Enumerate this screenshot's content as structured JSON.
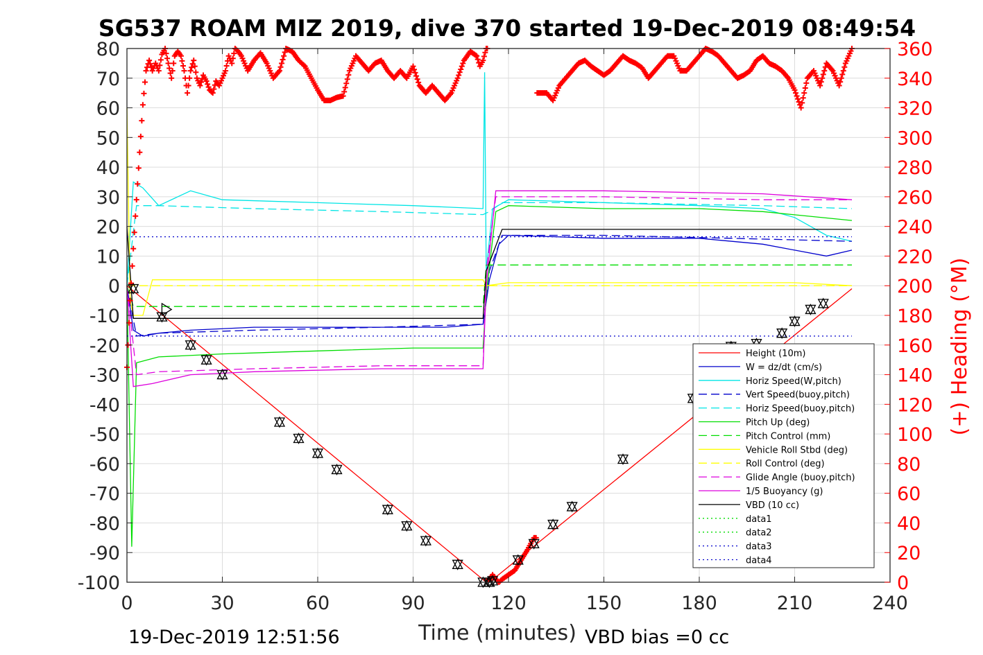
{
  "title": "SG537 ROAM MIZ 2019, dive 370 started 19-Dec-2019 08:49:54",
  "footer": {
    "left": "19-Dec-2019 12:51:56",
    "right": "VBD bias =0 cc"
  },
  "colors": {
    "red": "#ff0000",
    "blue": "#0000cc",
    "cyan": "#00e5e5",
    "green": "#00dd00",
    "yellow": "#ffff00",
    "magenta": "#dd00dd",
    "black": "#000000",
    "grid": "#dcdcdc"
  },
  "chart_data": {
    "type": "line",
    "title": "SG537 ROAM MIZ 2019, dive 370 started 19-Dec-2019 08:49:54",
    "xlabel": "Time (minutes)",
    "ylabel": "",
    "y2label": "(+) Heading (°M)",
    "xlim": [
      0,
      240
    ],
    "ylim": [
      -100,
      80
    ],
    "y2lim": [
      0,
      360
    ],
    "xticks": [
      "0",
      "30",
      "60",
      "90",
      "120",
      "150",
      "180",
      "210",
      "240"
    ],
    "xtick_values": [
      0,
      30,
      60,
      90,
      120,
      150,
      180,
      210,
      240
    ],
    "yticks": [
      "80",
      "70",
      "60",
      "50",
      "40",
      "30",
      "20",
      "10",
      "0",
      "-10",
      "-20",
      "-30",
      "-40",
      "-50",
      "-60",
      "-70",
      "-80",
      "-90",
      "-100"
    ],
    "ytick_values": [
      80,
      70,
      60,
      50,
      40,
      30,
      20,
      10,
      0,
      -10,
      -20,
      -30,
      -40,
      -50,
      -60,
      -70,
      -80,
      -90,
      -100
    ],
    "y2ticks": [
      "360",
      "340",
      "320",
      "300",
      "280",
      "260",
      "240",
      "220",
      "200",
      "180",
      "160",
      "140",
      "120",
      "100",
      "80",
      "60",
      "40",
      "20",
      "0"
    ],
    "y2tick_values": [
      360,
      340,
      320,
      300,
      280,
      260,
      240,
      220,
      200,
      180,
      160,
      140,
      120,
      100,
      80,
      60,
      40,
      20,
      0
    ],
    "grid": true,
    "legend_position": "bottom-right",
    "series": [
      {
        "name": "Height (10m)",
        "color": "#ff0000",
        "style": "solid",
        "x": [
          0,
          113,
          114,
          228
        ],
        "y": [
          0,
          -100,
          -100,
          -1
        ]
      },
      {
        "name": "W = dz/dt (cm/s)",
        "color": "#0000cc",
        "style": "solid",
        "x": [
          0,
          2,
          5,
          10,
          20,
          40,
          60,
          80,
          100,
          112,
          114,
          117,
          120,
          150,
          180,
          200,
          210,
          220,
          228
        ],
        "y": [
          0,
          -15,
          -17,
          -16,
          -15,
          -14,
          -14,
          -14,
          -14,
          -13,
          2,
          14,
          17,
          16,
          16,
          14,
          12,
          10,
          12
        ]
      },
      {
        "name": "Horiz Speed(W,pitch)",
        "color": "#00e5e5",
        "style": "solid",
        "x": [
          0,
          2,
          5,
          10,
          20,
          30,
          60,
          90,
          112,
          112.5,
          113,
          115,
          120,
          150,
          180,
          200,
          210,
          220,
          228
        ],
        "y": [
          0,
          35,
          33,
          27,
          32,
          29,
          28,
          27,
          26,
          72,
          5,
          26,
          29,
          28,
          27,
          26,
          23,
          17,
          15
        ]
      },
      {
        "name": "Vert Speed(buoy,pitch)",
        "color": "#0000cc",
        "style": "dashed",
        "x": [
          0,
          3,
          10,
          40,
          80,
          112,
          114,
          118,
          150,
          190,
          228
        ],
        "y": [
          0,
          -17,
          -16,
          -15,
          -14,
          -13,
          5,
          17,
          17,
          16,
          15
        ]
      },
      {
        "name": "Horiz Speed(buoy,pitch)",
        "color": "#00e5e5",
        "style": "dashed",
        "x": [
          0,
          3,
          10,
          40,
          80,
          112,
          114,
          118,
          150,
          200,
          228
        ],
        "y": [
          0,
          27,
          27,
          26,
          25,
          24,
          25,
          28,
          28,
          27,
          26
        ]
      },
      {
        "name": "Pitch Up (deg)",
        "color": "#00dd00",
        "style": "solid",
        "x": [
          0,
          1.5,
          3,
          10,
          30,
          60,
          90,
          112,
          113,
          116,
          120,
          150,
          180,
          200,
          228
        ],
        "y": [
          0,
          -88,
          -26,
          -24,
          -23,
          -22,
          -21,
          -21,
          -3,
          25,
          27,
          26,
          26,
          25,
          22
        ]
      },
      {
        "name": "Pitch Control (mm)",
        "color": "#00dd00",
        "style": "dashed",
        "x": [
          0,
          2,
          112,
          113,
          228
        ],
        "y": [
          0,
          -7,
          -7,
          7,
          7
        ]
      },
      {
        "name": "Vehicle Roll Stbd (deg)",
        "color": "#ffff00",
        "style": "solid",
        "x": [
          0,
          1,
          2,
          5,
          8,
          30,
          60,
          90,
          112,
          113,
          120,
          150,
          180,
          210,
          228
        ],
        "y": [
          60,
          -5,
          -10,
          -10,
          2,
          2,
          2,
          2,
          2,
          0,
          1,
          1,
          1,
          1,
          0
        ]
      },
      {
        "name": "Roll Control (deg)",
        "color": "#ffff00",
        "style": "dashed",
        "x": [
          0,
          228
        ],
        "y": [
          0,
          0
        ]
      },
      {
        "name": "Glide Angle (buoy,pitch)",
        "color": "#dd00dd",
        "style": "dashed",
        "x": [
          0,
          3,
          10,
          40,
          80,
          112,
          113,
          116,
          150,
          200,
          228
        ],
        "y": [
          0,
          -30,
          -29,
          -28,
          -27,
          -27,
          5,
          30,
          30,
          29,
          29
        ]
      },
      {
        "name": "1/5 Buoyancy (g)",
        "color": "#dd00dd",
        "style": "solid",
        "x": [
          0,
          2,
          8,
          20,
          40,
          80,
          112,
          113,
          116,
          150,
          200,
          228
        ],
        "y": [
          0,
          -34,
          -33,
          -30,
          -29,
          -28,
          -28,
          0,
          32,
          32,
          31,
          29
        ]
      },
      {
        "name": "VBD (10 cc)",
        "color": "#000000",
        "style": "solid",
        "x": [
          0,
          2,
          112,
          113,
          118,
          200,
          218,
          228
        ],
        "y": [
          20,
          -11,
          -11,
          5,
          19,
          19,
          19,
          19
        ]
      },
      {
        "name": "data1",
        "color": "#00dd00",
        "style": "dotted",
        "x": [],
        "y": []
      },
      {
        "name": "data2",
        "color": "#00dd00",
        "style": "dotted",
        "x": [],
        "y": []
      },
      {
        "name": "data3",
        "color": "#0000cc",
        "style": "dotted",
        "x": [
          0,
          228
        ],
        "y": [
          16.5,
          16.5
        ]
      },
      {
        "name": "data4",
        "color": "#0000cc",
        "style": "dotted",
        "x": [
          0,
          228
        ],
        "y": [
          -17,
          -17
        ]
      }
    ],
    "depth_markers": {
      "color": "#000000",
      "x": [
        2,
        11,
        20,
        25,
        30,
        48,
        54,
        60,
        66,
        82,
        88,
        94,
        104,
        112,
        114,
        115,
        123,
        128,
        134,
        140,
        156,
        178,
        190,
        198,
        206,
        210,
        215,
        219
      ],
      "y": [
        -1,
        -10.5,
        -20,
        -25,
        -30,
        -46,
        -51.5,
        -56.5,
        -62,
        -75.5,
        -81,
        -86,
        -94,
        -100,
        -100,
        -99.5,
        -92.5,
        -87,
        -80.5,
        -74.5,
        -58.5,
        -38,
        -20.5,
        -19.5,
        -16,
        -12,
        -8,
        -6
      ]
    },
    "heading": {
      "name": "(+) Heading (°M)",
      "axis": "right",
      "color": "#ff0000",
      "marker": "+",
      "x": [
        0,
        1,
        2,
        3,
        4,
        5,
        6,
        7,
        8,
        9,
        10,
        11,
        12,
        13,
        14,
        15,
        16,
        17,
        18,
        19,
        20,
        21,
        22,
        23,
        24,
        25,
        26,
        27,
        28,
        29,
        30,
        31,
        32,
        33,
        34,
        35,
        36,
        38,
        40,
        42,
        44,
        46,
        48,
        50,
        52,
        54,
        56,
        58,
        60,
        62,
        64,
        66,
        68,
        70,
        72,
        74,
        76,
        78,
        80,
        82,
        84,
        86,
        88,
        90,
        92,
        94,
        96,
        98,
        100,
        102,
        104,
        106,
        108,
        110,
        111,
        112,
        113,
        114,
        115,
        116,
        117,
        118,
        120,
        122,
        124,
        126,
        128,
        130,
        132,
        134,
        136,
        138,
        140,
        142,
        144,
        146,
        148,
        150,
        152,
        154,
        156,
        158,
        160,
        162,
        164,
        166,
        168,
        170,
        172,
        174,
        176,
        178,
        180,
        182,
        184,
        186,
        188,
        190,
        192,
        194,
        196,
        198,
        200,
        202,
        204,
        206,
        208,
        210,
        212,
        214,
        216,
        218,
        220,
        222,
        224,
        226,
        228
      ],
      "y": [
        145,
        190,
        225,
        258,
        290,
        322,
        345,
        352,
        345,
        350,
        345,
        356,
        360,
        350,
        340,
        355,
        358,
        355,
        345,
        330,
        345,
        352,
        340,
        335,
        342,
        338,
        332,
        330,
        338,
        335,
        340,
        345,
        355,
        350,
        360,
        358,
        355,
        345,
        352,
        357,
        350,
        340,
        345,
        360,
        358,
        352,
        348,
        340,
        332,
        325,
        325,
        327,
        328,
        345,
        355,
        350,
        345,
        350,
        352,
        345,
        340,
        345,
        340,
        348,
        335,
        330,
        335,
        330,
        325,
        330,
        340,
        352,
        358,
        355,
        348,
        352,
        360,
        2,
        5,
        2,
        0,
        2,
        5,
        8,
        15,
        22,
        30,
        330,
        330,
        325,
        335,
        340,
        345,
        350,
        352,
        348,
        345,
        342,
        345,
        350,
        355,
        352,
        350,
        347,
        340,
        345,
        350,
        355,
        355,
        345,
        345,
        350,
        355,
        360,
        358,
        355,
        350,
        345,
        340,
        342,
        345,
        352,
        355,
        350,
        348,
        345,
        340,
        332,
        320,
        340,
        345,
        335,
        350,
        345,
        335,
        350,
        360
      ]
    }
  }
}
